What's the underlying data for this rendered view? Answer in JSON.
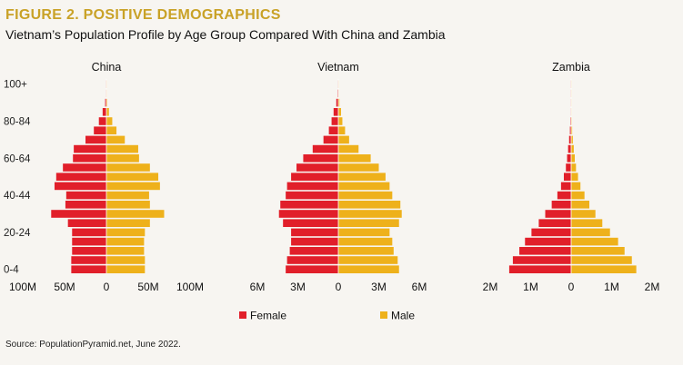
{
  "figure": {
    "title": "FIGURE 2. POSITIVE DEMOGRAPHICS",
    "subtitle": "Vietnam’s Population Profile by Age Group Compared With China and Zambia",
    "source": "Source: PopulationPyramid.net, June 2022."
  },
  "colors": {
    "female": "#e11f2a",
    "male": "#eeb11b"
  },
  "chart_data": {
    "type": "bar",
    "orientation": "horizontal-pyramid",
    "age_groups": [
      "0-4",
      "5-9",
      "10-14",
      "15-19",
      "20-24",
      "25-29",
      "30-34",
      "35-39",
      "40-44",
      "45-49",
      "50-54",
      "55-59",
      "60-64",
      "65-69",
      "70-74",
      "75-79",
      "80-84",
      "85-89",
      "90-94",
      "95-99",
      "100+"
    ],
    "y_tick_labels": [
      "0-4",
      "",
      "",
      "",
      "20-24",
      "",
      "",
      "",
      "40-44",
      "",
      "",
      "",
      "60-64",
      "",
      "",
      "",
      "80-84",
      "",
      "",
      "",
      "100+"
    ],
    "legend": [
      "Female",
      "Male"
    ],
    "legend_placement": "bottom-center",
    "grid": false,
    "panels": [
      {
        "title": "China",
        "unit": "people",
        "xlim": [
          -100000000,
          100000000
        ],
        "x_tick_labels": [
          "100M",
          "50M",
          "0",
          "50M",
          "100M"
        ],
        "x_tick_values": [
          -100000000,
          -50000000,
          0,
          50000000,
          100000000
        ],
        "series": [
          {
            "name": "Female",
            "values": [
              42000000,
              42000000,
              41000000,
              41000000,
              41000000,
              46000000,
              66000000,
              49000000,
              48000000,
              62000000,
              60000000,
              52000000,
              40000000,
              39000000,
              25000000,
              15000000,
              9000000,
              4500000,
              1500000,
              400000,
              50000
            ]
          },
          {
            "name": "Male",
            "values": [
              46000000,
              46000000,
              45000000,
              45000000,
              46000000,
              52000000,
              69000000,
              52000000,
              51000000,
              64000000,
              62000000,
              52000000,
              39000000,
              38000000,
              22000000,
              12000000,
              7000000,
              3000000,
              1000000,
              200000,
              20000
            ]
          }
        ]
      },
      {
        "title": "Vietnam",
        "unit": "people",
        "xlim": [
          -6000000,
          6000000
        ],
        "x_tick_labels": [
          "6M",
          "3M",
          "0",
          "3M",
          "6M"
        ],
        "x_tick_values": [
          -6000000,
          -3000000,
          0,
          3000000,
          6000000
        ],
        "series": [
          {
            "name": "Female",
            "values": [
              3900000,
              3800000,
              3600000,
              3500000,
              3500000,
              4100000,
              4400000,
              4300000,
              3900000,
              3800000,
              3500000,
              3100000,
              2600000,
              1900000,
              1100000,
              700000,
              500000,
              350000,
              150000,
              50000,
              10000
            ]
          },
          {
            "name": "Male",
            "values": [
              4500000,
              4400000,
              4100000,
              4000000,
              3800000,
              4500000,
              4700000,
              4600000,
              4000000,
              3800000,
              3500000,
              3000000,
              2400000,
              1500000,
              800000,
              500000,
              300000,
              200000,
              80000,
              20000,
              5000
            ]
          }
        ]
      },
      {
        "title": "Zambia",
        "unit": "people",
        "xlim": [
          -2000000,
          2000000
        ],
        "x_tick_labels": [
          "2M",
          "1M",
          "0",
          "1M",
          "2M"
        ],
        "x_tick_values": [
          -2000000,
          -1000000,
          0,
          1000000,
          2000000
        ],
        "series": [
          {
            "name": "Female",
            "values": [
              1530000,
              1440000,
              1280000,
              1140000,
              980000,
              800000,
              640000,
              480000,
              340000,
              250000,
              180000,
              130000,
              100000,
              75000,
              50000,
              30000,
              18000,
              10000,
              4000,
              1000,
              200
            ]
          },
          {
            "name": "Male",
            "values": [
              1610000,
              1500000,
              1320000,
              1160000,
              960000,
              770000,
              600000,
              450000,
              330000,
              230000,
              170000,
              120000,
              90000,
              65000,
              42000,
              25000,
              14000,
              8000,
              3000,
              800,
              200
            ]
          }
        ]
      }
    ]
  }
}
